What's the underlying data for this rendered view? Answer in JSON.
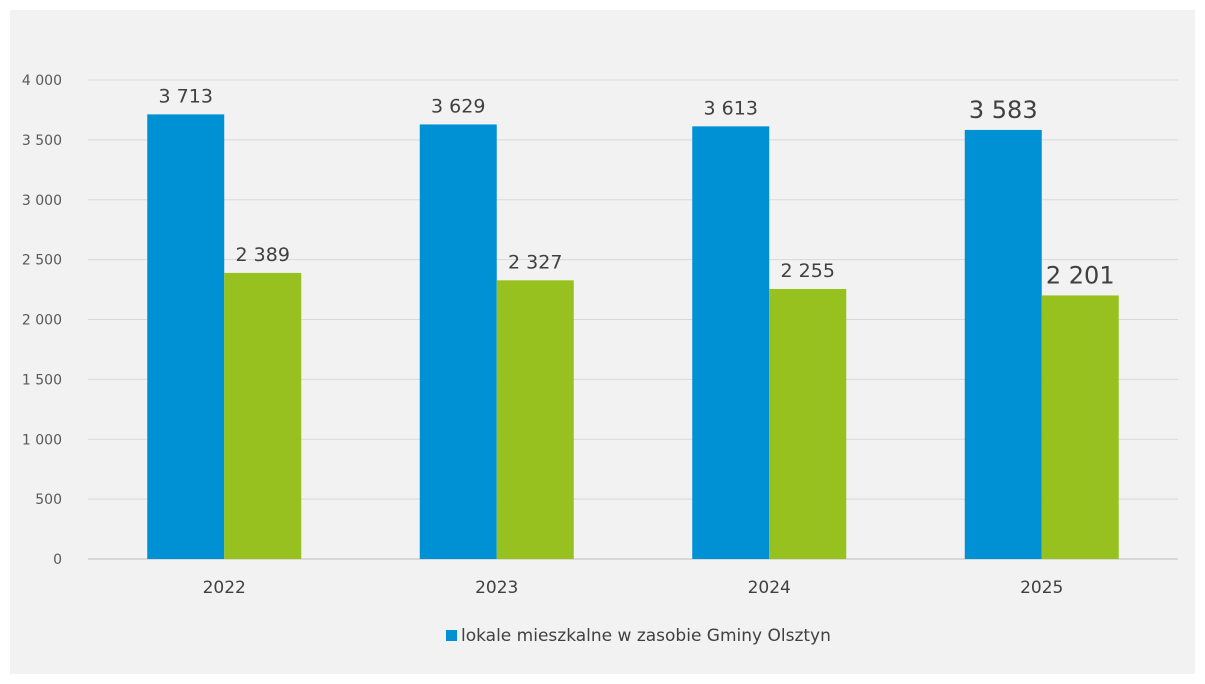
{
  "chart_data": {
    "type": "bar",
    "title": "",
    "xlabel": "",
    "ylabel": "",
    "ylim": [
      0,
      4000
    ],
    "yticks": [
      0,
      500,
      1000,
      1500,
      2000,
      2500,
      3000,
      3500,
      4000
    ],
    "ytick_labels": [
      "0",
      "500",
      "1 000",
      "1 500",
      "2 000",
      "2 500",
      "3 000",
      "3 500",
      "4 000"
    ],
    "grid": true,
    "legend_position": "bottom",
    "categories": [
      "2022",
      "2023",
      "2024",
      "2025"
    ],
    "series": [
      {
        "name": "lokale mieszkalne w zasobie Gminy Olsztyn",
        "color": "#0090d4",
        "values": [
          3713,
          3629,
          3613,
          3583
        ],
        "labels": [
          "3 713",
          "3 629",
          "3 613",
          "3 583"
        ]
      },
      {
        "color": "#97c11f",
        "values": [
          2389,
          2327,
          2255,
          2201
        ],
        "labels": [
          "2 389",
          "2 327",
          "2 255",
          "2 201"
        ]
      }
    ]
  }
}
